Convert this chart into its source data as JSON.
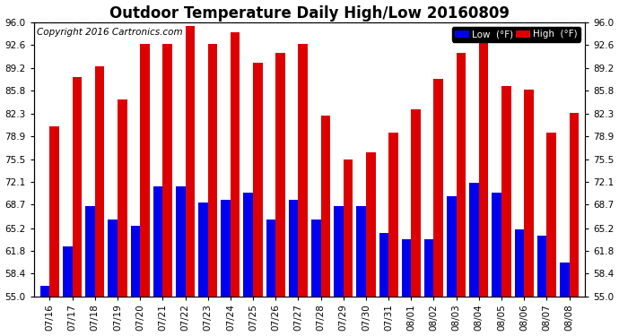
{
  "title": "Outdoor Temperature Daily High/Low 20160809",
  "copyright": "Copyright 2016 Cartronics.com",
  "categories": [
    "07/16",
    "07/17",
    "07/18",
    "07/19",
    "07/20",
    "07/21",
    "07/22",
    "07/23",
    "07/24",
    "07/25",
    "07/26",
    "07/27",
    "07/28",
    "07/29",
    "07/30",
    "07/31",
    "08/01",
    "08/02",
    "08/03",
    "08/04",
    "08/05",
    "08/06",
    "08/07",
    "08/08"
  ],
  "high_values": [
    80.5,
    87.8,
    89.5,
    84.5,
    92.8,
    92.8,
    95.5,
    92.8,
    94.5,
    90.0,
    91.5,
    92.8,
    82.0,
    75.5,
    76.5,
    79.5,
    83.0,
    87.5,
    91.5,
    93.5,
    86.5,
    86.0,
    79.5,
    82.5
  ],
  "low_values": [
    56.5,
    62.5,
    68.5,
    66.5,
    65.5,
    71.5,
    71.5,
    69.0,
    69.5,
    70.5,
    66.5,
    69.5,
    66.5,
    68.5,
    68.5,
    64.5,
    63.5,
    63.5,
    70.0,
    72.0,
    70.5,
    65.0,
    64.0,
    60.0
  ],
  "low_color": "#0000ee",
  "high_color": "#dd0000",
  "plot_bg_color": "#d8d8d8",
  "background_color": "#ffffff",
  "ylim": [
    55.0,
    96.0
  ],
  "yticks": [
    55.0,
    58.4,
    61.8,
    65.2,
    68.7,
    72.1,
    75.5,
    78.9,
    82.3,
    85.8,
    89.2,
    92.6,
    96.0
  ],
  "ytick_labels": [
    "55.0",
    "58.4",
    "61.8",
    "65.2",
    "68.7",
    "72.1",
    "75.5",
    "78.9",
    "82.3",
    "85.8",
    "89.2",
    "92.6",
    "96.0"
  ],
  "legend_low_label": "Low  (°F)",
  "legend_high_label": "High  (°F)",
  "title_fontsize": 12,
  "copyright_fontsize": 7.5,
  "tick_fontsize": 7.5,
  "bar_width": 0.42
}
